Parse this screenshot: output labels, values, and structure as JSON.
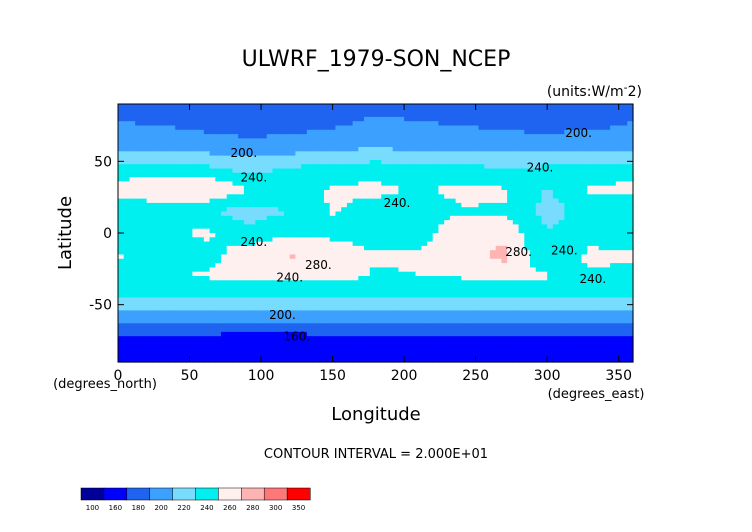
{
  "chart_data": {
    "type": "heatmap",
    "title": "ULWRF_1979-SON_NCEP",
    "units": "(units:W/m^2)",
    "xlabel": "Longitude",
    "ylabel": "Latitude",
    "x_unit_label": "(degrees_east)",
    "y_unit_label": "(degrees_north)",
    "xlim": [
      0,
      360
    ],
    "ylim": [
      -90,
      90
    ],
    "x_ticks": [
      0,
      50,
      100,
      150,
      200,
      250,
      300,
      350
    ],
    "y_ticks": [
      -50,
      0,
      50
    ],
    "footer": "CONTOUR INTERVAL = 2.000E+01",
    "contour_labels": [
      {
        "text": "200.",
        "lon": 88,
        "lat": 53
      },
      {
        "text": "200.",
        "lon": 322,
        "lat": 67
      },
      {
        "text": "240.",
        "lon": 95,
        "lat": 36
      },
      {
        "text": "240.",
        "lon": 195,
        "lat": 18
      },
      {
        "text": "240.",
        "lon": 295,
        "lat": 43
      },
      {
        "text": "240.",
        "lon": 95,
        "lat": -9
      },
      {
        "text": "240.",
        "lon": 120,
        "lat": -34
      },
      {
        "text": "240.",
        "lon": 332,
        "lat": -35
      },
      {
        "text": "280.",
        "lon": 140,
        "lat": -25
      },
      {
        "text": "280.",
        "lon": 280,
        "lat": -16
      },
      {
        "text": "240.",
        "lon": 312,
        "lat": -15
      },
      {
        "text": "200.",
        "lon": 115,
        "lat": -60
      },
      {
        "text": "160.",
        "lon": 125,
        "lat": -75
      }
    ],
    "colorbar": {
      "levels": [
        "100",
        "160",
        "180",
        "200",
        "220",
        "240",
        "260",
        "280",
        "300",
        "350"
      ],
      "colors": [
        "#00009b",
        "#0000ff",
        "#1e64f0",
        "#3ca0ff",
        "#78dcff",
        "#00f0f0",
        "#fff0f0",
        "#ffb4b4",
        "#ff7878",
        "#ff0000"
      ]
    },
    "field_estimate": {
      "lats": [
        -90,
        -75,
        -60,
        -45,
        -30,
        -15,
        0,
        15,
        30,
        45,
        60,
        75,
        90
      ],
      "lons": [
        0,
        30,
        60,
        90,
        120,
        150,
        180,
        210,
        240,
        270,
        300,
        330,
        360
      ],
      "values": [
        [
          160,
          160,
          160,
          160,
          160,
          160,
          160,
          160,
          160,
          160,
          160,
          160,
          160
        ],
        [
          172,
          170,
          170,
          168,
          168,
          170,
          172,
          172,
          172,
          172,
          170,
          172,
          172
        ],
        [
          205,
          205,
          205,
          205,
          205,
          208,
          208,
          208,
          208,
          208,
          205,
          205,
          205
        ],
        [
          240,
          240,
          238,
          238,
          240,
          240,
          242,
          242,
          242,
          240,
          240,
          240,
          240
        ],
        [
          255,
          258,
          262,
          265,
          268,
          268,
          258,
          260,
          262,
          266,
          262,
          258,
          255
        ],
        [
          262,
          246,
          250,
          272,
          282,
          278,
          262,
          262,
          272,
          286,
          240,
          264,
          262
        ],
        [
          248,
          250,
          265,
          245,
          256,
          252,
          246,
          250,
          278,
          272,
          242,
          252,
          248
        ],
        [
          244,
          246,
          242,
          232,
          240,
          262,
          250,
          242,
          258,
          258,
          232,
          248,
          244
        ],
        [
          266,
          278,
          282,
          262,
          254,
          262,
          266,
          258,
          266,
          262,
          238,
          262,
          266
        ],
        [
          250,
          252,
          246,
          232,
          242,
          248,
          250,
          248,
          246,
          240,
          244,
          248,
          250
        ],
        [
          212,
          212,
          210,
          208,
          210,
          215,
          218,
          215,
          212,
          212,
          210,
          215,
          212
        ],
        [
          202,
          200,
          196,
          190,
          192,
          198,
          205,
          202,
          200,
          196,
          194,
          196,
          202
        ],
        [
          190,
          190,
          188,
          182,
          185,
          188,
          195,
          192,
          190,
          188,
          186,
          188,
          190
        ]
      ]
    }
  }
}
